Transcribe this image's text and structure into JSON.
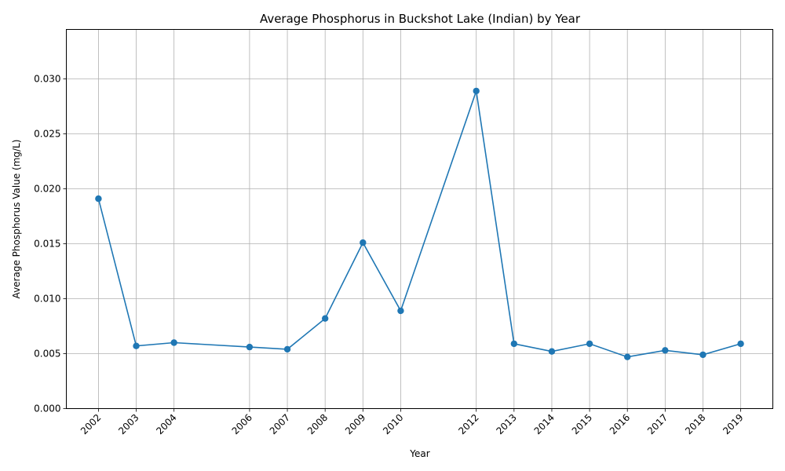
{
  "chart_data": {
    "type": "line",
    "title": "Average Phosphorus in Buckshot Lake (Indian) by Year",
    "xlabel": "Year",
    "ylabel": "Average Phosphorus Value (mg/L)",
    "x": [
      2002,
      2003,
      2004,
      2006,
      2007,
      2008,
      2009,
      2010,
      2012,
      2013,
      2014,
      2015,
      2016,
      2017,
      2018,
      2019
    ],
    "x_tick_labels": [
      "2002",
      "2003",
      "2004",
      "2006",
      "2007",
      "2008",
      "2009",
      "2010",
      "2012",
      "2013",
      "2014",
      "2015",
      "2016",
      "2017",
      "2018",
      "2019"
    ],
    "series": [
      {
        "values": [
          0.0191,
          0.0057,
          0.006,
          0.0056,
          0.0054,
          0.0082,
          0.0151,
          0.0089,
          0.0289,
          0.0059,
          0.0052,
          0.0059,
          0.0047,
          0.0053,
          0.0049,
          0.0059
        ],
        "color": "#1f77b4",
        "marker": "circle"
      }
    ],
    "xlim": [
      2001.15,
      2019.85
    ],
    "ylim": [
      0,
      0.0345
    ],
    "y_ticks": [
      0,
      0.005,
      0.01,
      0.015,
      0.02,
      0.025,
      0.03
    ],
    "y_tick_labels": [
      "0.000",
      "0.005",
      "0.010",
      "0.015",
      "0.020",
      "0.025",
      "0.030"
    ],
    "grid": true,
    "legend": "none"
  }
}
